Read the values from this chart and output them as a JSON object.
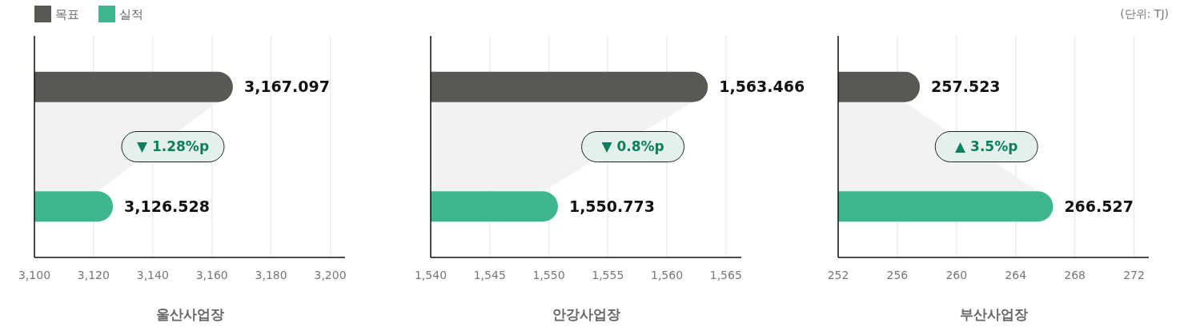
{
  "chart_data": [
    {
      "type": "bar",
      "orientation": "horizontal",
      "categories": [
        null
      ],
      "xlabel": "울산사업장",
      "xlim": [
        3100,
        3205
      ],
      "xticks": [
        {
          "value": 3100,
          "label": "3,100"
        },
        {
          "value": 3120,
          "label": "3,120"
        },
        {
          "value": 3140,
          "label": "3,140"
        },
        {
          "value": 3160,
          "label": "3,160"
        },
        {
          "value": 3180,
          "label": "3,180"
        },
        {
          "value": 3200,
          "label": "3,200"
        }
      ],
      "grid": "x",
      "legend": "top left",
      "annotations": [
        "▼ 1.28%p"
      ],
      "series": [
        {
          "name": "목표",
          "color": "#5a5852",
          "values": [
            3167.097
          ],
          "value_labels": [
            "3,167.097"
          ]
        },
        {
          "name": "실적",
          "color": "#3db68e",
          "values": [
            3126.528
          ],
          "value_labels": [
            "3,126.528"
          ]
        }
      ]
    },
    {
      "type": "bar",
      "orientation": "horizontal",
      "categories": [
        null
      ],
      "xlabel": "안강사업장",
      "xlim": [
        1540,
        1566.3
      ],
      "xticks": [
        {
          "value": 1540,
          "label": "1,540"
        },
        {
          "value": 1545,
          "label": "1,545"
        },
        {
          "value": 1550,
          "label": "1,550"
        },
        {
          "value": 1555,
          "label": "1,555"
        },
        {
          "value": 1560,
          "label": "1,560"
        },
        {
          "value": 1565,
          "label": "1,565"
        }
      ],
      "grid": "x",
      "annotations": [
        "▼ 0.8%p"
      ],
      "series": [
        {
          "color": "#5a5852",
          "values": [
            1563.466
          ],
          "value_labels": [
            "1,563.466"
          ]
        },
        {
          "color": "#3db68e",
          "values": [
            1550.773
          ],
          "value_labels": [
            "1,550.773"
          ]
        }
      ]
    },
    {
      "type": "bar",
      "orientation": "horizontal",
      "categories": [
        null
      ],
      "xlabel": "부산사업장",
      "xlim": [
        252,
        273
      ],
      "xticks": [
        252,
        256,
        260,
        264,
        268,
        272
      ],
      "grid": "x",
      "annotations": [
        "▲ 3.5%p",
        "(단위: TJ)"
      ],
      "series": [
        {
          "color": "#5a5852",
          "values": [
            257.523
          ],
          "value_labels": [
            "257.523"
          ]
        },
        {
          "color": "#3db68e",
          "values": [
            266.527
          ],
          "value_labels": [
            "266.527"
          ]
        }
      ]
    }
  ]
}
